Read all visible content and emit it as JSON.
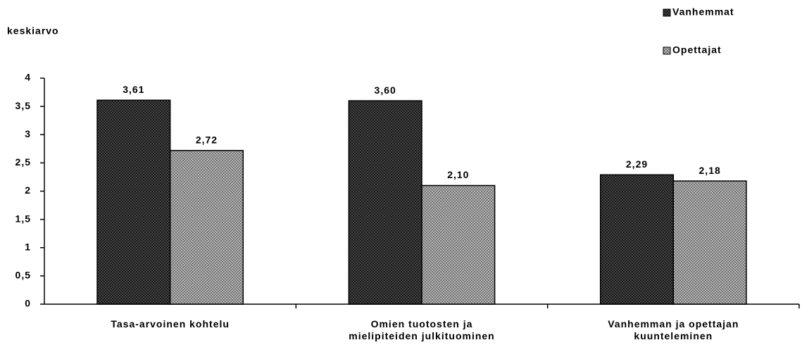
{
  "chart_data": {
    "type": "bar",
    "y_label": "keskiarvo",
    "categories": [
      "Tasa-arvoinen kohtelu",
      "Omien tuotosten ja\nmielipiteiden julkituominen",
      "Vanhemman ja opettajan\nkuunteleminen"
    ],
    "series": [
      {
        "name": "Vanhemmat",
        "color": "#4d4d4d",
        "values": [
          3.61,
          3.6,
          2.29
        ],
        "value_labels": [
          "3,61",
          "3,60",
          "2,29"
        ]
      },
      {
        "name": "Opettajat",
        "color": "#c4c4c4",
        "values": [
          2.72,
          2.1,
          2.18
        ],
        "value_labels": [
          "2,72",
          "2,10",
          "2,18"
        ]
      }
    ],
    "ylim": [
      0,
      4
    ],
    "yticks": [
      0,
      {
        "value": 0.5,
        "label": "0,5"
      },
      1,
      {
        "value": 1.5,
        "label": "1,5"
      },
      2,
      {
        "value": 2.5,
        "label": "2,5"
      },
      3,
      {
        "value": 3.5,
        "label": "3,5"
      },
      4
    ],
    "legend": "top-right",
    "grid": false
  }
}
